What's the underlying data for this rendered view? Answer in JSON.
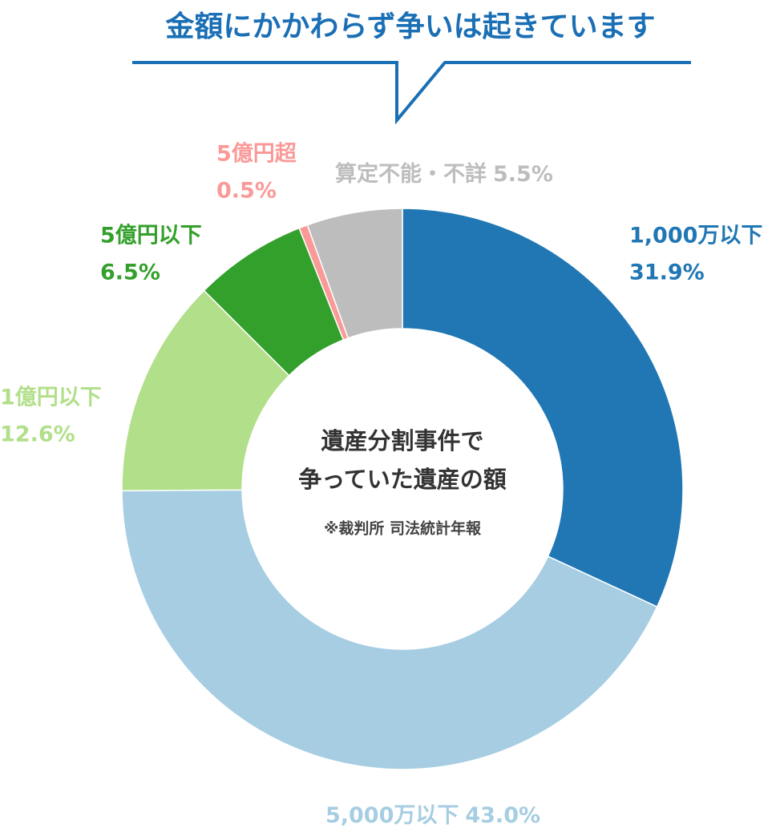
{
  "chart_data": {
    "type": "donut",
    "title": "金額にかかわらず争いは起きています",
    "center_lines": [
      "遺産分割事件で",
      "争っていた遺産の額"
    ],
    "note": "※裁判所 司法統計年報",
    "categories": [
      "1,000万以下",
      "5,000万以下",
      "1億円以下",
      "5億円以下",
      "5億円超",
      "算定不能・不詳"
    ],
    "values": [
      31.9,
      43.0,
      12.6,
      6.5,
      0.5,
      5.5
    ],
    "value_labels": [
      "31.9%",
      "43.0%",
      "12.6%",
      "6.5%",
      "0.5%",
      "5.5%"
    ],
    "colors": [
      "#2077b4",
      "#a6cde2",
      "#b2df8a",
      "#34a02c",
      "#f99a99",
      "#bdbdbd"
    ]
  }
}
